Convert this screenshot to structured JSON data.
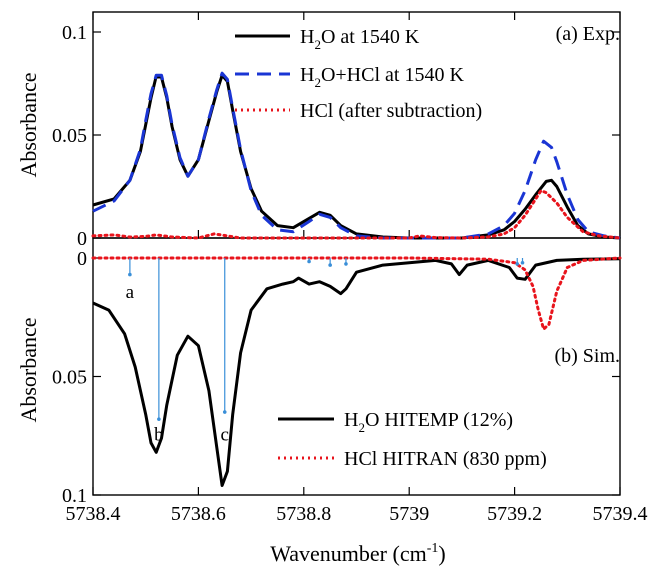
{
  "chart_data": [
    {
      "panel": "a",
      "type": "line",
      "panel_label": "(a) Exp.",
      "ylabel": "Absorbance",
      "xlim": [
        5738.4,
        5739.4
      ],
      "ylim": [
        0,
        0.1
      ],
      "yticks": [
        0,
        0.05,
        0.1
      ],
      "ytick_labels": [
        "0",
        "0.05",
        "0.1"
      ],
      "legend_position": "top-right",
      "series": [
        {
          "name_main": "H",
          "name_sub": "2",
          "name_rest": "O at 1540 K",
          "style": "solid",
          "color": "#000000",
          "x": [
            5738.4,
            5738.44,
            5738.47,
            5738.49,
            5738.5,
            5738.51,
            5738.52,
            5738.53,
            5738.54,
            5738.55,
            5738.565,
            5738.58,
            5738.6,
            5738.62,
            5738.635,
            5738.645,
            5738.655,
            5738.665,
            5738.68,
            5738.7,
            5738.72,
            5738.75,
            5738.78,
            5738.81,
            5738.83,
            5738.85,
            5738.87,
            5738.9,
            5738.95,
            5739.0,
            5739.05,
            5739.1,
            5739.15,
            5739.18,
            5739.2,
            5739.22,
            5739.24,
            5739.26,
            5739.27,
            5739.28,
            5739.3,
            5739.32,
            5739.34,
            5739.37,
            5739.4
          ],
          "y": [
            0.016,
            0.019,
            0.028,
            0.042,
            0.055,
            0.068,
            0.0785,
            0.078,
            0.068,
            0.054,
            0.038,
            0.03,
            0.038,
            0.057,
            0.071,
            0.079,
            0.076,
            0.062,
            0.042,
            0.024,
            0.013,
            0.006,
            0.005,
            0.0095,
            0.0125,
            0.011,
            0.006,
            0.002,
            0.0005,
            0.0,
            0.0,
            0.0,
            0.0015,
            0.004,
            0.008,
            0.014,
            0.021,
            0.0275,
            0.028,
            0.025,
            0.015,
            0.006,
            0.002,
            0.0005,
            0.0
          ]
        },
        {
          "name_main": "H",
          "name_sub": "2",
          "name_rest": "O+HCl at 1540 K",
          "style": "dashed",
          "color": "#1a35d4",
          "x": [
            5738.4,
            5738.44,
            5738.47,
            5738.49,
            5738.5,
            5738.51,
            5738.52,
            5738.53,
            5738.54,
            5738.55,
            5738.565,
            5738.58,
            5738.6,
            5738.62,
            5738.635,
            5738.645,
            5738.655,
            5738.665,
            5738.68,
            5738.7,
            5738.72,
            5738.75,
            5738.78,
            5738.81,
            5738.83,
            5738.85,
            5738.87,
            5738.9,
            5738.95,
            5739.0,
            5739.05,
            5739.1,
            5739.15,
            5739.18,
            5739.2,
            5739.22,
            5739.24,
            5739.255,
            5739.27,
            5739.28,
            5739.3,
            5739.32,
            5739.34,
            5739.37,
            5739.4
          ],
          "y": [
            0.013,
            0.018,
            0.028,
            0.043,
            0.057,
            0.07,
            0.079,
            0.079,
            0.069,
            0.055,
            0.039,
            0.03,
            0.038,
            0.058,
            0.072,
            0.08,
            0.077,
            0.063,
            0.043,
            0.023,
            0.011,
            0.004,
            0.003,
            0.008,
            0.0115,
            0.01,
            0.005,
            0.001,
            0.0,
            0.0,
            0.0,
            0.0,
            0.002,
            0.006,
            0.012,
            0.023,
            0.038,
            0.047,
            0.044,
            0.037,
            0.021,
            0.009,
            0.003,
            0.001,
            0.0
          ]
        },
        {
          "name": "HCl (after subtraction)",
          "style": "dotted",
          "color": "#e8141c",
          "x": [
            5738.4,
            5738.44,
            5738.47,
            5738.5,
            5738.52,
            5738.55,
            5738.6,
            5738.63,
            5738.65,
            5738.68,
            5738.72,
            5738.8,
            5738.9,
            5739.0,
            5739.02,
            5739.05,
            5739.1,
            5739.15,
            5739.18,
            5739.2,
            5739.22,
            5739.24,
            5739.25,
            5739.26,
            5739.28,
            5739.3,
            5739.33,
            5739.36,
            5739.4
          ],
          "y": [
            0.001,
            0.0015,
            0.0005,
            0.0008,
            0.0015,
            0.0005,
            0.0,
            0.002,
            0.0012,
            0.0,
            0.0,
            0.0,
            0.0,
            0.0,
            0.001,
            0.0002,
            0.0,
            0.0005,
            0.002,
            0.005,
            0.011,
            0.019,
            0.023,
            0.022,
            0.017,
            0.01,
            0.003,
            0.001,
            0.0
          ]
        }
      ]
    },
    {
      "panel": "b",
      "type": "line",
      "panel_label": "(b) Sim.",
      "ylabel": "Absorbance",
      "xlabel_main": "Wavenumber (cm",
      "xlabel_sup": "-1",
      "xlabel_close": ")",
      "xlim": [
        5738.4,
        5739.4
      ],
      "ylim": [
        0,
        0.1
      ],
      "y_inverted": true,
      "xticks": [
        5738.4,
        5738.6,
        5738.8,
        5739,
        5739.2,
        5739.4
      ],
      "xtick_labels": [
        "5738.4",
        "5738.6",
        "5738.8",
        "5739",
        "5739.2",
        "5739.4"
      ],
      "yticks": [
        0,
        0.05,
        0.1
      ],
      "ytick_labels": [
        "0",
        "0.05",
        "0.1"
      ],
      "legend_position": "bottom-right",
      "series": [
        {
          "name_main": "H",
          "name_sub": "2",
          "name_rest": "O HITEMP (12%)",
          "style": "solid",
          "color": "#000000",
          "x": [
            5738.4,
            5738.43,
            5738.46,
            5738.48,
            5738.5,
            5738.51,
            5738.52,
            5738.53,
            5738.54,
            5738.56,
            5738.58,
            5738.6,
            5738.62,
            5738.635,
            5738.645,
            5738.655,
            5738.665,
            5738.68,
            5738.7,
            5738.73,
            5738.76,
            5738.78,
            5738.79,
            5738.81,
            5738.83,
            5738.85,
            5738.87,
            5738.88,
            5738.9,
            5738.95,
            5739.0,
            5739.05,
            5739.08,
            5739.095,
            5739.11,
            5739.15,
            5739.19,
            5739.205,
            5739.22,
            5739.24,
            5739.28,
            5739.33,
            5739.4
          ],
          "y": [
            0.019,
            0.022,
            0.032,
            0.046,
            0.066,
            0.078,
            0.082,
            0.076,
            0.062,
            0.041,
            0.033,
            0.037,
            0.056,
            0.08,
            0.096,
            0.09,
            0.066,
            0.04,
            0.022,
            0.013,
            0.011,
            0.01,
            0.0085,
            0.011,
            0.01,
            0.012,
            0.015,
            0.013,
            0.006,
            0.003,
            0.002,
            0.001,
            0.0025,
            0.007,
            0.003,
            0.001,
            0.004,
            0.0085,
            0.009,
            0.003,
            0.001,
            0.0005,
            0.0003
          ]
        },
        {
          "name": "HCl HITRAN (830 ppm)",
          "style": "dotted",
          "color": "#e8141c",
          "x": [
            5738.4,
            5739.0,
            5739.15,
            5739.2,
            5739.22,
            5739.235,
            5739.245,
            5739.255,
            5739.265,
            5739.28,
            5739.3,
            5739.33,
            5739.4
          ],
          "y": [
            0.0,
            0.0,
            0.0005,
            0.002,
            0.005,
            0.012,
            0.022,
            0.03,
            0.028,
            0.014,
            0.004,
            0.001,
            0.0
          ]
        }
      ],
      "stick_lines": [
        {
          "x": 5738.47,
          "depth": 0.007
        },
        {
          "x": 5738.525,
          "depth": 0.068
        },
        {
          "x": 5738.65,
          "depth": 0.065
        },
        {
          "x": 5738.81,
          "depth": 0.0015
        },
        {
          "x": 5738.85,
          "depth": 0.003
        },
        {
          "x": 5738.88,
          "depth": 0.0025
        },
        {
          "x": 5739.205,
          "depth": 0.0025
        },
        {
          "x": 5739.215,
          "depth": 0.002
        }
      ],
      "stick_color": "#3a8fd8",
      "stick_labels": [
        {
          "text": "a",
          "x": 5738.47,
          "y": 0.011
        },
        {
          "text": "b",
          "x": 5738.525,
          "y": 0.071
        },
        {
          "text": "c",
          "x": 5738.65,
          "y": 0.071
        }
      ]
    }
  ]
}
